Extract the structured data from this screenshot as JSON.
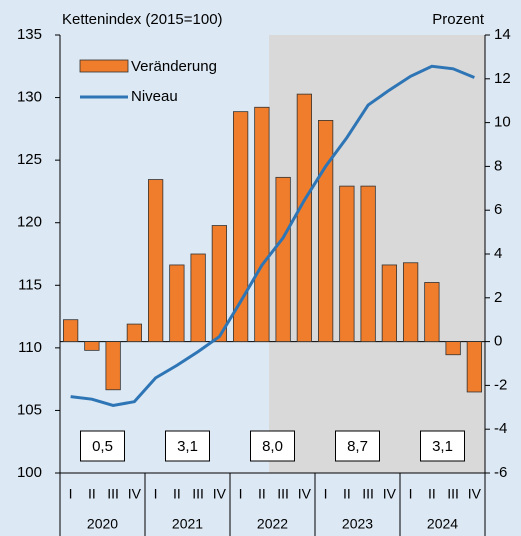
{
  "chart_data": {
    "type": "bar",
    "ylabel": "Kettenindex (2015=100)",
    "y2label": "Prozent",
    "categories": [
      "I",
      "II",
      "III",
      "IV",
      "I",
      "II",
      "III",
      "IV",
      "I",
      "II",
      "III",
      "IV",
      "I",
      "II",
      "III",
      "IV",
      "I",
      "II",
      "III",
      "IV"
    ],
    "groups": [
      "2020",
      "2021",
      "2022",
      "2023",
      "2024"
    ],
    "group_values": [
      0.5,
      3.1,
      8.0,
      8.7,
      3.1
    ],
    "group_value_labels": [
      "0,5",
      "3,1",
      "8,0",
      "8,7",
      "3,1"
    ],
    "series": [
      {
        "name": "Veränderung",
        "type": "bar",
        "axis": "y2",
        "color": "#f07d2b",
        "values": [
          1.0,
          -0.4,
          -2.2,
          0.8,
          7.4,
          3.5,
          4.0,
          5.3,
          10.5,
          10.7,
          7.5,
          11.3,
          10.1,
          7.1,
          7.1,
          3.5,
          3.6,
          2.7,
          -0.6,
          -2.3
        ]
      },
      {
        "name": "Niveau",
        "type": "line",
        "axis": "y",
        "color": "#2e75b6",
        "values": [
          106.1,
          105.9,
          105.4,
          105.7,
          107.6,
          108.6,
          109.7,
          110.9,
          113.7,
          116.6,
          118.8,
          121.8,
          124.5,
          126.8,
          129.4,
          130.6,
          131.7,
          132.5,
          132.3,
          131.6
        ]
      }
    ],
    "ylim": [
      100,
      135
    ],
    "yticks": [
      100,
      105,
      110,
      115,
      120,
      125,
      130,
      135
    ],
    "y2lim": [
      -6,
      14
    ],
    "y2ticks": [
      -6,
      -4,
      -2,
      0,
      2,
      4,
      6,
      8,
      10,
      12,
      14
    ]
  }
}
